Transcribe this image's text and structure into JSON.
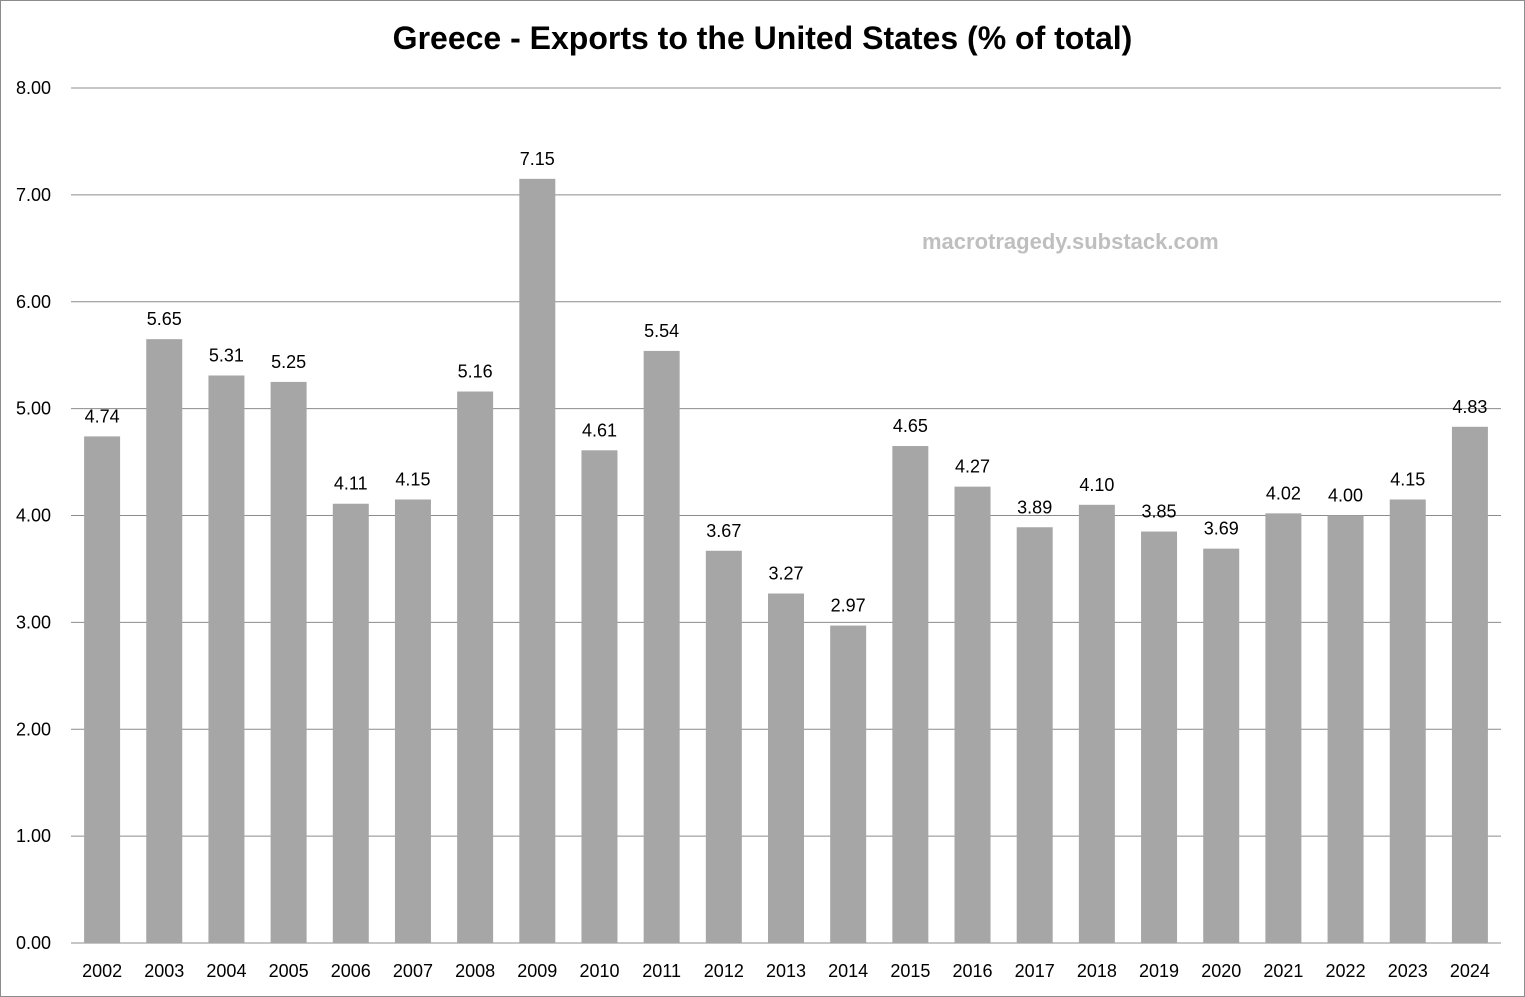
{
  "chart_data": {
    "type": "bar",
    "title": "Greece - Exports to the United States (% of total)",
    "watermark": "macrotragedy.substack.com",
    "xlabel": "",
    "ylabel": "",
    "ylim": [
      0,
      8
    ],
    "yticks": [
      "0.00",
      "1.00",
      "2.00",
      "3.00",
      "4.00",
      "5.00",
      "6.00",
      "7.00",
      "8.00"
    ],
    "grid": true,
    "bar_color": "#a6a6a6",
    "categories": [
      "2002",
      "2003",
      "2004",
      "2005",
      "2006",
      "2007",
      "2008",
      "2009",
      "2010",
      "2011",
      "2012",
      "2013",
      "2014",
      "2015",
      "2016",
      "2017",
      "2018",
      "2019",
      "2020",
      "2021",
      "2022",
      "2023",
      "2024"
    ],
    "values": [
      4.74,
      5.65,
      5.31,
      5.25,
      4.11,
      4.15,
      5.16,
      7.15,
      4.61,
      5.54,
      3.67,
      3.27,
      2.97,
      4.65,
      4.27,
      3.89,
      4.1,
      3.85,
      3.69,
      4.02,
      4.0,
      4.15,
      4.83
    ],
    "data_labels": [
      "4.74",
      "5.65",
      "5.31",
      "5.25",
      "4.11",
      "4.15",
      "5.16",
      "7.15",
      "4.61",
      "5.54",
      "3.67",
      "3.27",
      "2.97",
      "4.65",
      "4.27",
      "3.89",
      "4.10",
      "3.85",
      "3.69",
      "4.02",
      "4.00",
      "4.15",
      "4.83"
    ]
  }
}
